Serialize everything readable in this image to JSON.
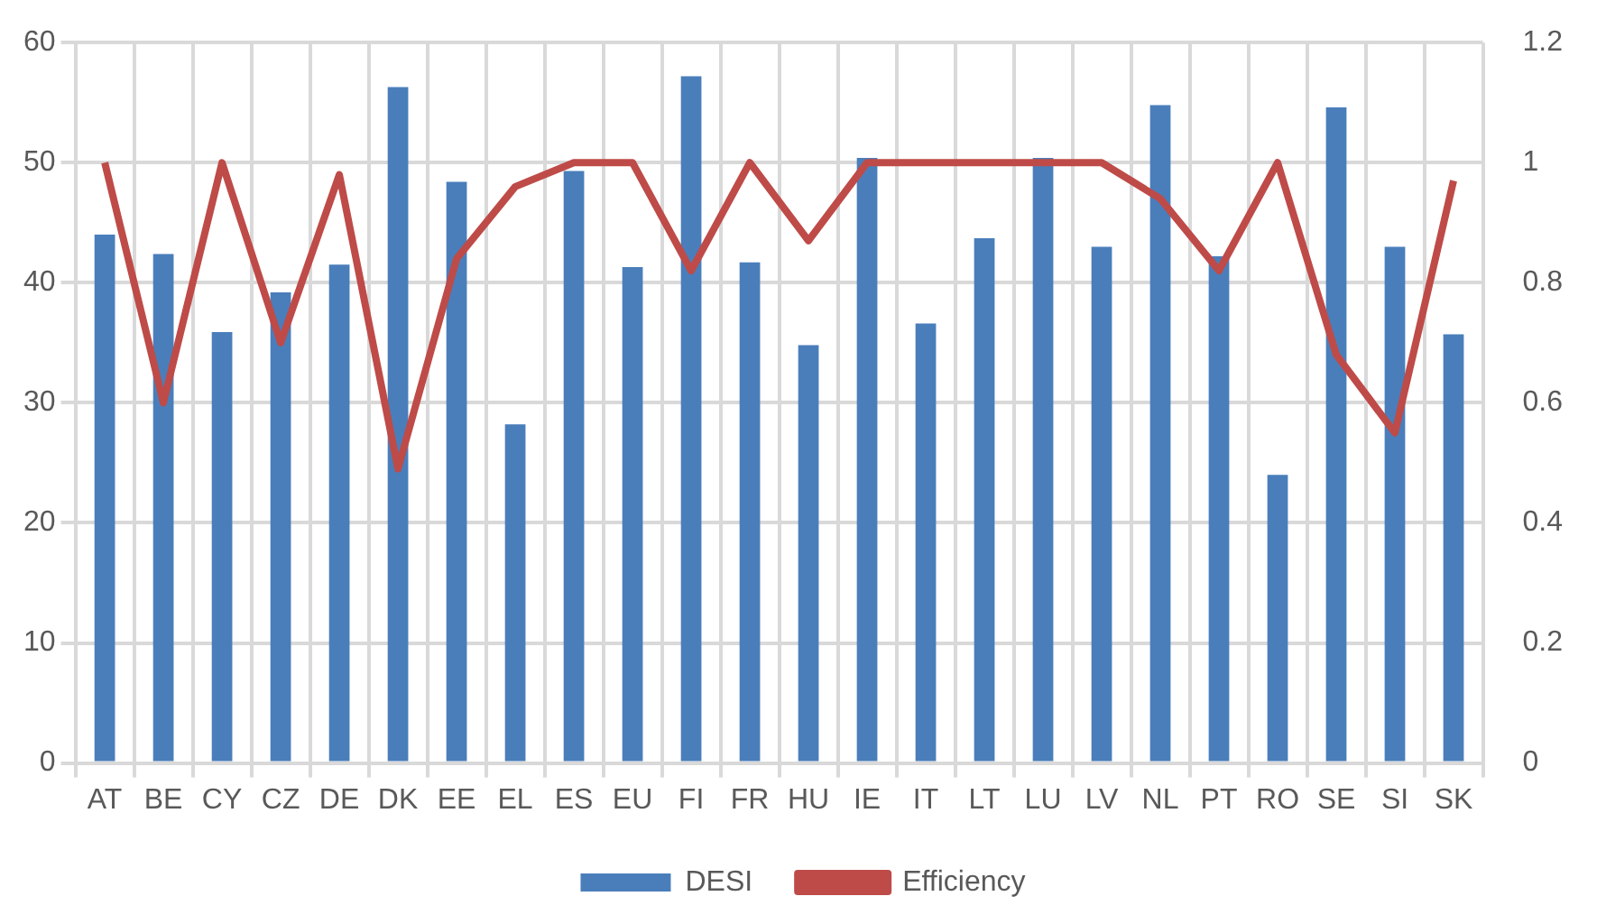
{
  "chart_data": {
    "type": "bar",
    "categories": [
      "AT",
      "BE",
      "CY",
      "CZ",
      "DE",
      "DK",
      "EE",
      "EL",
      "ES",
      "EU",
      "FI",
      "FR",
      "HU",
      "IE",
      "IT",
      "LT",
      "LU",
      "LV",
      "NL",
      "PT",
      "RO",
      "SE",
      "SI",
      "SK"
    ],
    "series": [
      {
        "name": "DESI",
        "color": "#4a7ebb",
        "values": [
          44.0,
          42.4,
          35.9,
          39.2,
          41.5,
          56.3,
          48.4,
          28.2,
          49.3,
          41.3,
          57.2,
          41.7,
          34.8,
          50.4,
          36.6,
          43.7,
          50.4,
          43.0,
          54.8,
          42.2,
          24.0,
          54.6,
          43.0,
          35.7
        ]
      },
      {
        "name": "Efficiency",
        "type": "line",
        "axis": "y2",
        "color": "#be4b48",
        "values": [
          1.0,
          0.6,
          1.0,
          0.7,
          0.98,
          0.49,
          0.84,
          0.96,
          1.0,
          1.0,
          0.82,
          1.0,
          0.87,
          1.0,
          1.0,
          1.0,
          1.0,
          1.0,
          0.94,
          0.82,
          1.0,
          0.68,
          0.55,
          0.97
        ]
      }
    ],
    "ylim": [
      0,
      60
    ],
    "yticks": [
      0,
      10,
      20,
      30,
      40,
      50,
      60
    ],
    "y2lim": [
      0,
      1.2
    ],
    "y2ticks": [
      0,
      0.2,
      0.4,
      0.6,
      0.8,
      1,
      1.2
    ],
    "grid": true,
    "legend": "bottom",
    "marker": "none"
  }
}
